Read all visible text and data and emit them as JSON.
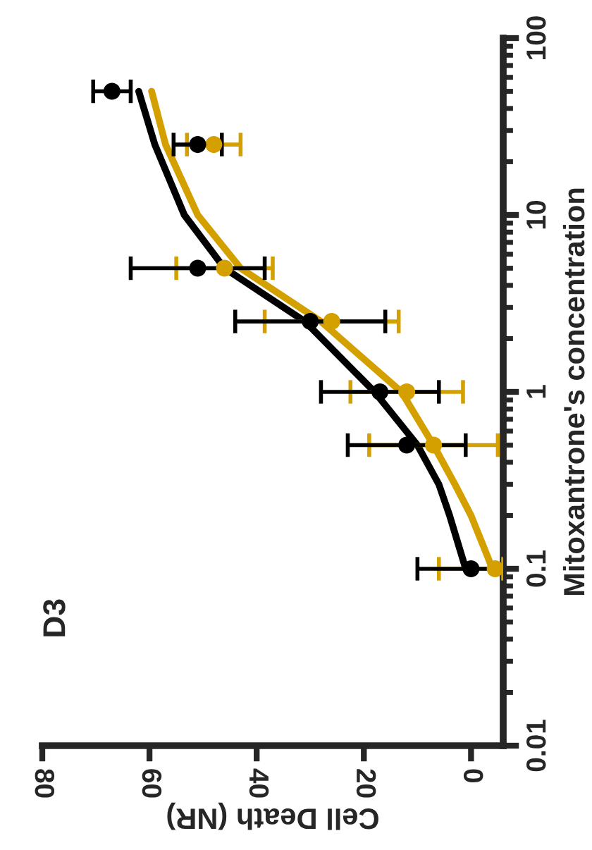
{
  "chart_data": {
    "type": "scatter",
    "title": "D3",
    "xlabel": "Cell Death (NR)",
    "ylabel": "Mitoxantrone's concentration",
    "log": "y",
    "xlim": [
      80,
      -6
    ],
    "xticks": [
      0,
      20,
      40,
      60,
      80
    ],
    "ylim": [
      0.01,
      100
    ],
    "yticks": [
      0.01,
      0.1,
      1,
      10,
      100
    ],
    "grid": false,
    "legend": false,
    "series": [
      {
        "type": "line",
        "color": "#d4a000",
        "x": [
          -4,
          0,
          3,
          7,
          13,
          28,
          43,
          51,
          57,
          59.6
        ],
        "values": [
          0.1,
          0.2,
          0.3,
          0.5,
          1,
          2.5,
          5,
          10,
          25,
          50
        ]
      },
      {
        "type": "line",
        "color": "#000000",
        "x": [
          1,
          4,
          6,
          10,
          18,
          31,
          46,
          53.5,
          59,
          62
        ],
        "values": [
          0.1,
          0.2,
          0.3,
          0.5,
          1,
          2.5,
          5,
          10,
          25,
          50
        ]
      },
      {
        "marker": "circle",
        "color": "#d4a000",
        "x": [
          -4.5,
          7,
          12,
          26,
          46,
          48,
          null
        ],
        "values": [
          0.1,
          0.5,
          1,
          2.5,
          5,
          25,
          null
        ],
        "xerrors": [
          [
            -6,
            6
          ],
          12,
          10.5,
          12.5,
          9,
          5,
          null
        ]
      },
      {
        "marker": "circle",
        "color": "#000000",
        "x": [
          0,
          12,
          17,
          30,
          51,
          51,
          67
        ],
        "values": [
          0.1,
          0.5,
          1,
          2.5,
          5,
          25,
          50
        ],
        "xerrors": [
          10,
          11,
          11,
          14,
          12.5,
          4.5,
          3.5
        ]
      }
    ]
  }
}
